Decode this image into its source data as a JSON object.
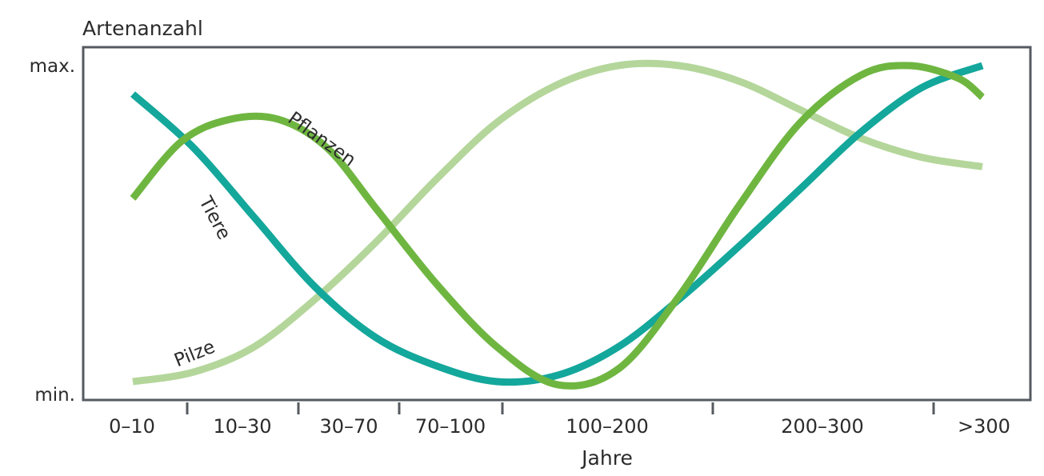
{
  "chart_data": {
    "type": "line",
    "ylabel": "Artenanzahl",
    "xlabel": "Jahre",
    "y_ticks": [
      "max.",
      "min."
    ],
    "categories": [
      "0–10",
      "10–30",
      "30–70",
      "70–100",
      "100–200",
      "200–300",
      ">300"
    ],
    "ylim": [
      0,
      1
    ],
    "grid": false,
    "legend": "none (series labelled directly on curves)",
    "series": [
      {
        "name": "Tiere",
        "color": "#14a79b",
        "x": [
          0,
          0.5,
          1.0,
          1.5,
          2.0,
          2.5,
          3.0,
          3.5,
          4.0,
          4.5,
          5.0,
          5.5,
          6.0,
          6.5,
          7.0
        ],
        "values": [
          0.91,
          0.74,
          0.52,
          0.3,
          0.14,
          0.05,
          0.0,
          0.02,
          0.11,
          0.26,
          0.43,
          0.61,
          0.79,
          0.93,
          1.0
        ]
      },
      {
        "name": "Pflanzen",
        "color": "#6fb641",
        "x": [
          0,
          0.4,
          0.8,
          1.2,
          1.6,
          2.0,
          2.5,
          3.0,
          3.5,
          4.0,
          4.5,
          5.0,
          5.5,
          6.0,
          6.4,
          6.8,
          7.0
        ],
        "values": [
          0.58,
          0.76,
          0.83,
          0.83,
          0.74,
          0.55,
          0.31,
          0.11,
          -0.01,
          0.04,
          0.27,
          0.56,
          0.82,
          0.97,
          1.0,
          0.96,
          0.9
        ]
      },
      {
        "name": "Pilze",
        "color": "#b4d69b",
        "x": [
          0,
          0.5,
          1.0,
          1.5,
          2.0,
          2.5,
          3.0,
          3.5,
          4.0,
          4.5,
          5.0,
          5.5,
          6.0,
          6.5,
          7.0
        ],
        "values": [
          0.0,
          0.03,
          0.11,
          0.26,
          0.44,
          0.64,
          0.82,
          0.94,
          1.0,
          1.0,
          0.95,
          0.86,
          0.77,
          0.71,
          0.68
        ]
      }
    ]
  }
}
